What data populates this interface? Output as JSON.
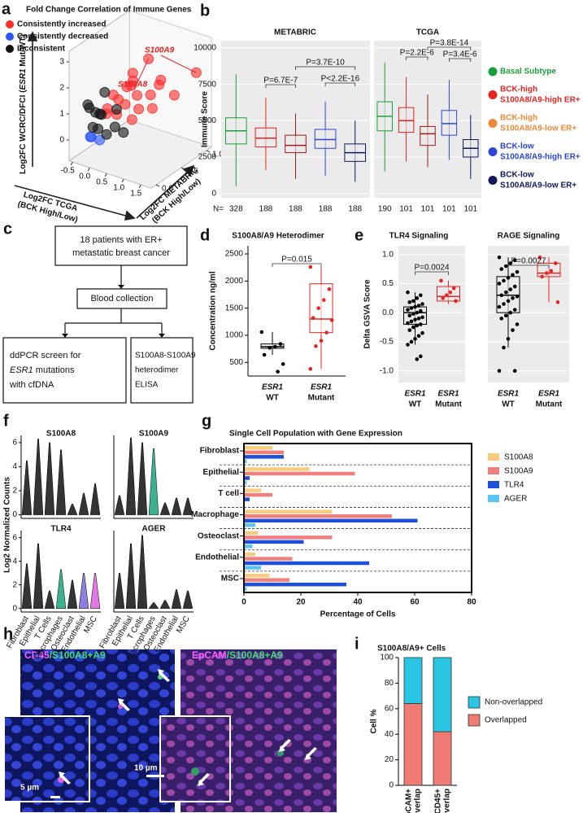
{
  "panel_letters": [
    "a",
    "b",
    "c",
    "d",
    "e",
    "f",
    "g",
    "h",
    "i"
  ],
  "chart_data": [
    {
      "type": "scatter3d",
      "title": "Fold Change Correlation of Immune Genes",
      "ylabel": [
        "Log2FC WCRC/DFCI (",
        "ESR1",
        " Mut/WT)"
      ],
      "xlabel": [
        "Log2FC TCGA",
        "(BCK High/Low)"
      ],
      "zlabel": [
        "Log2FC METABRIC",
        "(BCK High/Low)"
      ],
      "xlim": [
        -0.6,
        1.8
      ],
      "xticks": [
        -0.5,
        {
          "value": 0,
          "label": "0.0"
        },
        0.5,
        {
          "value": 1,
          "label": "1.0"
        },
        1.5
      ],
      "zlim": [
        -0.1,
        1.1
      ],
      "zticks": [
        {
          "value": 0,
          "label": "0.0"
        },
        0.5,
        {
          "value": 1,
          "label": "1.0"
        }
      ],
      "ylim": [
        -0.8,
        3.4
      ],
      "yticks": [
        0,
        1,
        2,
        3
      ],
      "labels": [
        "S100A9",
        "S100A8"
      ],
      "series": [
        {
          "name": "Consistently increased",
          "color": "#ff2a2a",
          "x": [
            1.5,
            1.0,
            0.6,
            0.8,
            0.5,
            0.9,
            0.7,
            0.4,
            1.1,
            0.6,
            0.3,
            1.0,
            0.8,
            0.5,
            1.2,
            0.7,
            0.9,
            0.4,
            1.3,
            0.2
          ],
          "z": [
            1.0,
            0.39,
            0.2,
            0.3,
            0.1,
            0.5,
            0.25,
            0.1,
            0.4,
            0.35,
            0.05,
            0.6,
            0.2,
            0.3,
            0.5,
            0.4,
            0.15,
            0.2,
            0.7,
            0.1
          ],
          "y": [
            2.06,
            3.17,
            1.5,
            1.8,
            1.2,
            1.6,
            2.2,
            1.9,
            1.3,
            2.5,
            1.4,
            1.9,
            1.0,
            2.0,
            2.3,
            1.1,
            2.6,
            1.6,
            1.5,
            1.1
          ]
        },
        {
          "name": "Consistently decreased",
          "color": "#2a55ff",
          "x": [
            -0.1,
            0.0,
            -0.2
          ],
          "z": [
            0.0,
            0.1,
            0.05
          ],
          "y": [
            0.2,
            0.0,
            0.1
          ]
        },
        {
          "name": "Inconsistent",
          "color": "#111111",
          "x": [
            0.0,
            -0.2,
            0.1,
            -0.1,
            0.2,
            0.0,
            -0.3,
            0.3,
            0.1,
            0.4,
            -0.2,
            0.2
          ],
          "z": [
            0.1,
            0.0,
            0.0,
            0.2,
            0.1,
            0.2,
            0.1,
            0.2,
            -0.05,
            0.3,
            0.1,
            0.3
          ],
          "y": [
            1.0,
            1.4,
            0.6,
            0.8,
            0.3,
            1.7,
            1.1,
            0.5,
            1.3,
            0.2,
            0.4,
            1.0
          ]
        }
      ]
    },
    {
      "type": "box",
      "title": "METABRIC",
      "ylabel": "Immune Score",
      "ylim": [
        -300,
        10500
      ],
      "yticks": [
        0,
        2500,
        5000,
        7500,
        10000
      ],
      "n_label": "N=",
      "n": [
        328,
        188,
        188,
        188,
        188
      ],
      "annotations": [
        "P=6.7E-7",
        "P=3.7E-10",
        "P<2.2E-16"
      ],
      "series": [
        {
          "name": [
            "Basal Subtype"
          ],
          "color": "#1b9e3e",
          "values": [
            500,
            3400,
            4300,
            5200,
            8200
          ]
        },
        {
          "name": [
            "BCK-high",
            "S100A8/A9-high ER+"
          ],
          "color": "#e8231f",
          "values": [
            1600,
            3200,
            3800,
            4500,
            6600
          ]
        },
        {
          "name": [
            "BCK-high",
            "S100A8/A9-low ER+"
          ],
          "color": "#f0883a",
          "box_color": "#9c1b1b",
          "values": [
            1000,
            2800,
            3300,
            4000,
            5500
          ]
        },
        {
          "name": [
            "BCK-low",
            "S100A8/A9-high ER+"
          ],
          "color": "#2b45d6",
          "values": [
            1200,
            3100,
            3700,
            4400,
            6300
          ]
        },
        {
          "name": [
            "BCK-low",
            "S100A8/A9-low ER+"
          ],
          "color": "#0d1a5c",
          "values": [
            800,
            2200,
            2800,
            3400,
            5000
          ]
        }
      ]
    },
    {
      "type": "box",
      "title": "TCGA",
      "ylim": [
        -300,
        10500
      ],
      "yticks": [
        0,
        2500,
        5000,
        7500,
        10000
      ],
      "n": [
        190,
        101,
        101,
        101,
        101
      ],
      "annotations": [
        "P=2.2E-6",
        "P=3.4E-6",
        "P=3.8E-14"
      ],
      "series": [
        {
          "color": "#1b9e3e",
          "values": [
            1500,
            4300,
            5300,
            6300,
            9000
          ]
        },
        {
          "color": "#e8231f",
          "values": [
            2200,
            4200,
            5000,
            5900,
            8000
          ]
        },
        {
          "color": "#9c1b1b",
          "values": [
            1800,
            3300,
            4100,
            4600,
            6800
          ]
        },
        {
          "color": "#2b45d6",
          "values": [
            2300,
            4000,
            4800,
            5700,
            7800
          ]
        },
        {
          "color": "#0d1a5c",
          "values": [
            1000,
            2500,
            3100,
            3700,
            5400
          ]
        }
      ]
    },
    {
      "type": "box",
      "title": "S100A8/A9 Heterodimer",
      "ylabel": "Concentration ng/ml",
      "ylim": [
        250,
        2650
      ],
      "yticks": [
        500,
        1000,
        1500,
        2000,
        2500
      ],
      "categories": [
        [
          "ESR1",
          "WT"
        ],
        [
          "ESR1",
          "Mutant"
        ]
      ],
      "annotations": [
        "P=0.015"
      ],
      "series": [
        {
          "color": "#000000",
          "values": [
            640,
            760,
            790,
            840,
            1060
          ],
          "points": [
            1060,
            840,
            790,
            770,
            640,
            470,
            330
          ]
        },
        {
          "color": "#e8231f",
          "values": [
            380,
            1050,
            1300,
            1950,
            2260
          ],
          "points": [
            2260,
            1850,
            1650,
            1500,
            1320,
            1280,
            1050,
            900,
            800,
            380
          ]
        }
      ]
    },
    {
      "type": "box",
      "title": "TLR4 Signaling",
      "ylabel": "Delta GSVA Score",
      "ylim": [
        -1.2,
        1.15
      ],
      "yticks": [
        {
          "value": -1,
          "label": "-1.0"
        },
        -0.5,
        {
          "value": 0,
          "label": "0.0"
        },
        0.5,
        {
          "value": 1,
          "label": "1.0"
        }
      ],
      "categories": [
        [
          "ESR1",
          "WT"
        ],
        [
          "ESR1",
          "Mutant"
        ]
      ],
      "annotations": [
        "P=0.0024"
      ],
      "series": [
        {
          "color": "#000000",
          "values": [
            -0.55,
            -0.2,
            0.0,
            0.1,
            0.35
          ],
          "points": [
            0.35,
            0.3,
            0.25,
            0.2,
            0.18,
            0.15,
            0.12,
            0.1,
            0.08,
            0.05,
            0.03,
            0.0,
            -0.02,
            -0.05,
            -0.08,
            -0.1,
            -0.12,
            -0.15,
            -0.18,
            -0.2,
            -0.22,
            -0.25,
            -0.3,
            -0.35,
            -0.4,
            -0.45,
            -0.5,
            -0.55,
            -0.75,
            -0.8
          ]
        },
        {
          "color": "#e8231f",
          "values": [
            0.15,
            0.2,
            0.28,
            0.45,
            0.55
          ],
          "points": [
            0.55,
            0.42,
            0.35,
            0.3,
            0.25,
            0.2
          ]
        }
      ]
    },
    {
      "type": "box",
      "title": "RAGE Signaling",
      "ylim": [
        -1.2,
        1.15
      ],
      "yticks": [
        -1,
        -0.5,
        0,
        0.5,
        1
      ],
      "categories": [
        [
          "ESR1",
          "WT"
        ],
        [
          "ESR1",
          "Mutant"
        ]
      ],
      "annotations": [
        "P=0.0027"
      ],
      "series": [
        {
          "color": "#000000",
          "values": [
            -0.6,
            0.0,
            0.3,
            0.62,
            0.95
          ],
          "points": [
            0.95,
            0.9,
            0.85,
            0.8,
            0.75,
            0.7,
            0.65,
            0.6,
            0.55,
            0.5,
            0.45,
            0.4,
            0.35,
            0.3,
            0.28,
            0.25,
            0.2,
            0.15,
            0.1,
            0.05,
            0.0,
            -0.05,
            -0.1,
            -0.2,
            -0.3,
            -0.45,
            -0.6,
            -1.0,
            -1.0
          ]
        },
        {
          "color": "#e8231f",
          "values": [
            0.18,
            0.62,
            0.68,
            0.85,
            0.95
          ],
          "points": [
            0.95,
            0.85,
            0.72,
            0.68,
            0.62,
            0.18
          ]
        }
      ]
    },
    {
      "type": "violin",
      "title": "S100A8",
      "ylabel": "Log2 Normalized Counts",
      "ylim": [
        -0.3,
        6.6
      ],
      "yticks": [
        0,
        2,
        4,
        6
      ],
      "values": [
        4.5,
        6.3,
        6.0,
        5.4,
        0.9,
        1.8,
        2.6
      ],
      "colors": [
        "#111111",
        "#111111",
        "#111111",
        "#111111",
        "#111111",
        "#111111",
        "#111111"
      ]
    },
    {
      "type": "violin",
      "title": "S100A9",
      "ylim": [
        -0.3,
        6.6
      ],
      "values": [
        1.6,
        6.4,
        6.0,
        5.5,
        1.0,
        1.4,
        1.4
      ],
      "colors": [
        "#111111",
        "#111111",
        "#111111",
        "#1aa37a",
        "#111111",
        "#111111",
        "#111111"
      ]
    },
    {
      "type": "violin",
      "title": "TLR4",
      "ylim": [
        -0.3,
        6.6
      ],
      "yticks": [
        0,
        2,
        4,
        6
      ],
      "categories": [
        "Fibroblast",
        "Epithelial",
        "T Cells",
        "Macrophages",
        "Osteoclast",
        "Endothelial",
        "MSC"
      ],
      "values": [
        3.8,
        5.5,
        1.5,
        3.3,
        2.4,
        3.0,
        3.0
      ],
      "colors": [
        "#111111",
        "#111111",
        "#111111",
        "#1aa37a",
        "#111111",
        "#7b68d8",
        "#e060e0"
      ]
    },
    {
      "type": "violin",
      "title": "AGER",
      "ylim": [
        -0.3,
        6.6
      ],
      "categories": [
        "Fibroblast",
        "Epithelial",
        "T Cells",
        "Macrophages",
        "Osteoclast",
        "Endothelial",
        "MSC"
      ],
      "values": [
        3.0,
        5.5,
        6.2,
        0.5,
        0.7,
        1.6,
        1.5
      ],
      "colors": [
        "#111111",
        "#111111",
        "#111111",
        "#111111",
        "#111111",
        "#111111",
        "#111111"
      ]
    },
    {
      "type": "barh",
      "title": "Single Cell Population with Gene Expression",
      "xlabel": "Percentage of Cells",
      "categories": [
        "Fibroblast",
        "Epithelial",
        "T cell",
        "Macrophage",
        "Osteoclast",
        "Endothelial",
        "MSC"
      ],
      "xlim": [
        0,
        80
      ],
      "xticks": [
        0,
        20,
        40,
        60,
        80
      ],
      "series": [
        {
          "name": "S100A8",
          "color": "#f7cd7b",
          "values": [
            10,
            23,
            6,
            31,
            5,
            4,
            9
          ]
        },
        {
          "name": "S100A9",
          "color": "#f08080",
          "values": [
            14,
            39,
            10,
            52,
            31,
            17,
            16
          ]
        },
        {
          "name": "TLR4",
          "color": "#1e4fd8",
          "values": [
            14,
            2,
            2,
            61,
            21,
            44,
            36
          ]
        },
        {
          "name": "AGER",
          "color": "#5bc4f0",
          "values": [
            1,
            1,
            0,
            4,
            3,
            6,
            1
          ]
        }
      ]
    },
    {
      "type": "stacked",
      "title": "S100A8/A9+ Cells",
      "ylabel": "Cell %",
      "ylim": [
        0,
        100
      ],
      "yticks": [
        0,
        20,
        40,
        60,
        80,
        100
      ],
      "categories": [
        [
          "EpCAM+",
          "Overlap"
        ],
        [
          "CD45+",
          "Overlap"
        ]
      ],
      "series": [
        {
          "name": "Overlapped",
          "color": "#f07b72",
          "values": [
            64,
            42
          ]
        },
        {
          "name": "Non-overlapped",
          "color": "#29c5e3",
          "values": [
            36,
            58
          ]
        }
      ]
    }
  ],
  "flowchart": {
    "nodes": [
      {
        "lines": [
          "18 patients with ER+",
          "metastatic breast cancer"
        ]
      },
      {
        "lines": [
          "Blood collection"
        ]
      },
      {
        "lines": [
          "ddPCR screen for",
          [
            "ESR1",
            " mutations"
          ],
          "with cfDNA"
        ]
      },
      {
        "lines": [
          "S100A8-S100A9",
          "heterodimer",
          "ELISA"
        ]
      }
    ]
  },
  "images": {
    "left": {
      "label": [
        "CD45",
        "/S100A8+A9"
      ],
      "scale": "10 µm",
      "inset_scale": "5 µm"
    },
    "right": {
      "label": [
        "EpCAM",
        "/S100A8+A9"
      ]
    }
  }
}
